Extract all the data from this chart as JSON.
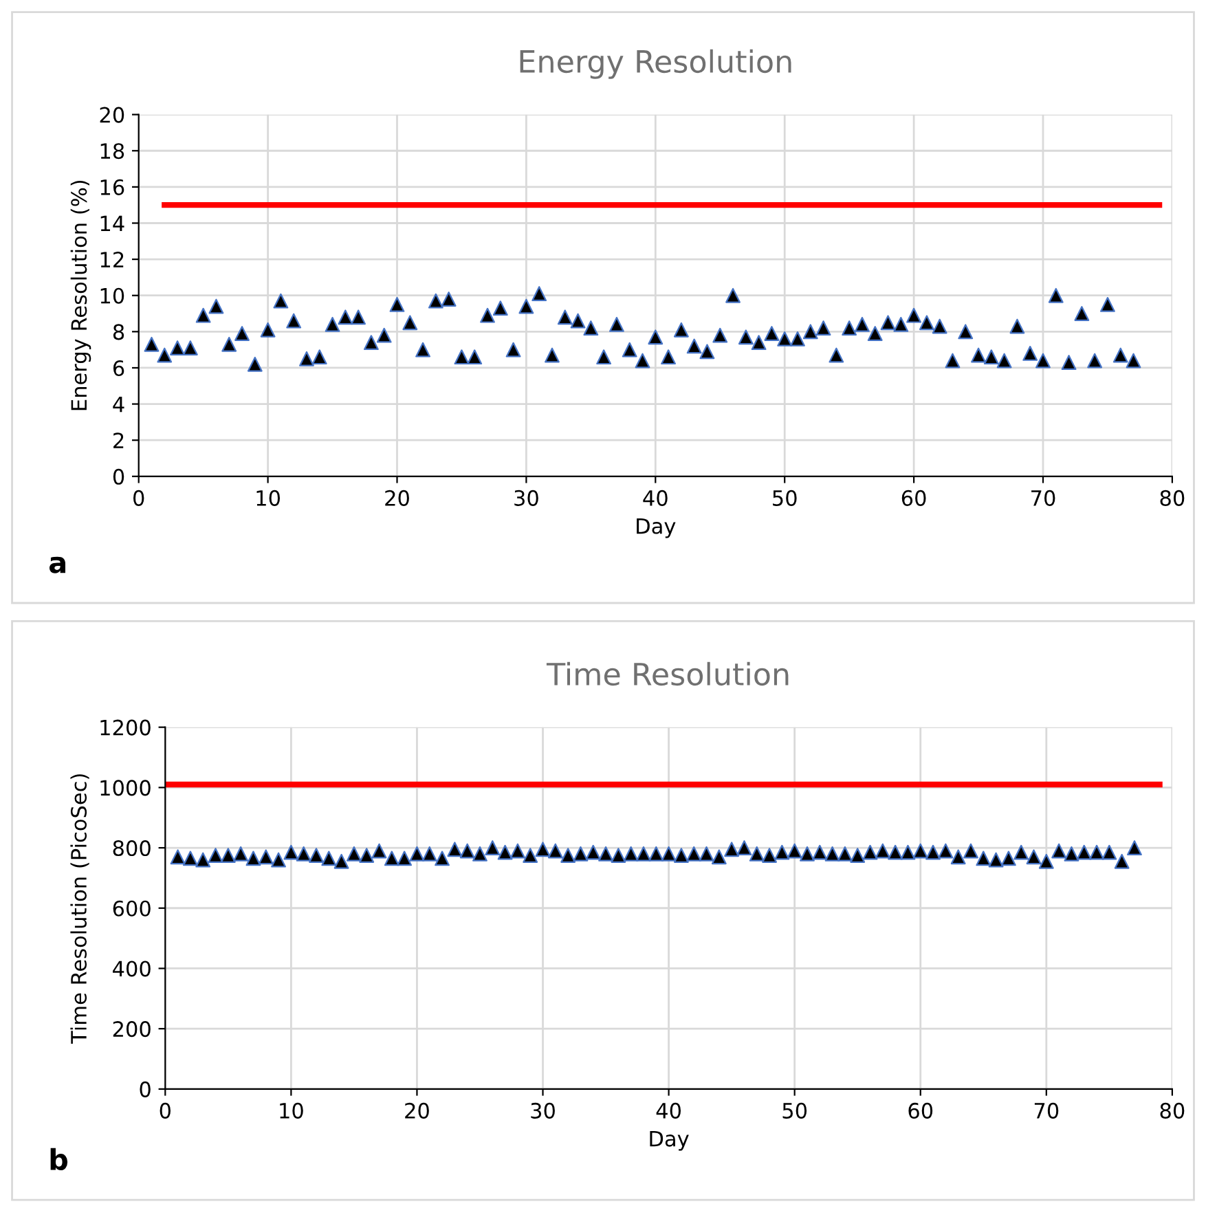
{
  "chart_data": [
    {
      "type": "scatter",
      "title": "Energy Resolution",
      "xlabel": "Day",
      "ylabel": "Energy Resolution (%)",
      "annotations": [
        "a"
      ],
      "xlim": [
        0,
        80
      ],
      "xticks": [
        0,
        10,
        20,
        30,
        40,
        50,
        60,
        70,
        80
      ],
      "ylim": [
        0,
        20
      ],
      "yticks": [
        0,
        2,
        4,
        6,
        8,
        10,
        12,
        14,
        16,
        18,
        20
      ],
      "grid": true,
      "legend": false,
      "marker": "triangle",
      "series": [
        {
          "color": "#000000",
          "x": [
            1,
            2,
            3,
            4,
            5,
            6,
            7,
            8,
            9,
            10,
            11,
            12,
            13,
            14,
            15,
            16,
            17,
            18,
            19,
            20,
            21,
            22,
            23,
            24,
            25,
            26,
            27,
            28,
            29,
            30,
            31,
            32,
            33,
            34,
            35,
            36,
            37,
            38,
            39,
            40,
            41,
            42,
            43,
            44,
            45,
            46,
            47,
            48,
            49,
            50,
            51,
            52,
            53,
            54,
            55,
            56,
            57,
            58,
            59,
            60,
            61,
            62,
            63,
            64,
            65,
            66,
            67,
            68,
            69,
            70,
            71,
            72,
            73,
            74,
            75,
            76,
            77
          ],
          "values": [
            7.3,
            6.7,
            7.1,
            7.1,
            8.9,
            9.4,
            7.3,
            7.9,
            6.2,
            8.1,
            9.7,
            8.6,
            6.5,
            6.6,
            8.4,
            8.8,
            8.8,
            7.4,
            7.8,
            9.5,
            8.5,
            7.0,
            9.7,
            9.8,
            6.6,
            6.6,
            8.9,
            9.3,
            7.0,
            9.4,
            10.1,
            6.7,
            8.8,
            8.6,
            8.2,
            6.6,
            8.4,
            7.0,
            6.4,
            7.7,
            6.6,
            8.1,
            7.2,
            6.9,
            7.8,
            10.0,
            7.7,
            7.4,
            7.9,
            7.6,
            7.6,
            8.0,
            8.2,
            6.7,
            8.2,
            8.4,
            7.9,
            8.5,
            8.4,
            8.9,
            8.5,
            8.3,
            6.4,
            8.0,
            6.7,
            6.6,
            6.4,
            8.3,
            6.8,
            6.4,
            10.0,
            6.3,
            9.0,
            6.4,
            9.5,
            6.7,
            6.4
          ]
        },
        {
          "type": "line",
          "color": "#ff0000",
          "marker": "none",
          "x": [
            2,
            79
          ],
          "values": [
            15,
            15
          ]
        }
      ]
    },
    {
      "type": "scatter",
      "title": "Time Resolution",
      "xlabel": "Day",
      "ylabel": "Time Resolution (PicoSec)",
      "annotations": [
        "b"
      ],
      "xlim": [
        0,
        80
      ],
      "xticks": [
        0,
        10,
        20,
        30,
        40,
        50,
        60,
        70,
        80
      ],
      "ylim": [
        0,
        1200
      ],
      "yticks": [
        0,
        200,
        400,
        600,
        800,
        1000,
        1200
      ],
      "grid": true,
      "legend": false,
      "marker": "triangle",
      "series": [
        {
          "color": "#000000",
          "x": [
            1,
            2,
            3,
            4,
            5,
            6,
            7,
            8,
            9,
            10,
            11,
            12,
            13,
            14,
            15,
            16,
            17,
            18,
            19,
            20,
            21,
            22,
            23,
            24,
            25,
            26,
            27,
            28,
            29,
            30,
            31,
            32,
            33,
            34,
            35,
            36,
            37,
            38,
            39,
            40,
            41,
            42,
            43,
            44,
            45,
            46,
            47,
            48,
            49,
            50,
            51,
            52,
            53,
            54,
            55,
            56,
            57,
            58,
            59,
            60,
            61,
            62,
            63,
            64,
            65,
            66,
            67,
            68,
            69,
            70,
            71,
            72,
            73,
            74,
            75,
            76,
            77
          ],
          "values": [
            770,
            765,
            760,
            775,
            775,
            780,
            765,
            770,
            760,
            785,
            780,
            775,
            765,
            755,
            780,
            775,
            790,
            765,
            765,
            780,
            780,
            765,
            795,
            790,
            780,
            800,
            785,
            790,
            775,
            795,
            790,
            775,
            780,
            785,
            780,
            775,
            780,
            780,
            780,
            780,
            775,
            780,
            780,
            770,
            795,
            800,
            780,
            775,
            785,
            790,
            780,
            785,
            780,
            780,
            775,
            785,
            790,
            785,
            785,
            790,
            785,
            790,
            770,
            790,
            765,
            760,
            765,
            785,
            770,
            755,
            790,
            780,
            785,
            785,
            785,
            755,
            800
          ]
        },
        {
          "type": "line",
          "color": "#ff0000",
          "marker": "none",
          "x": [
            0,
            79
          ],
          "values": [
            1010,
            1010
          ]
        }
      ]
    }
  ]
}
